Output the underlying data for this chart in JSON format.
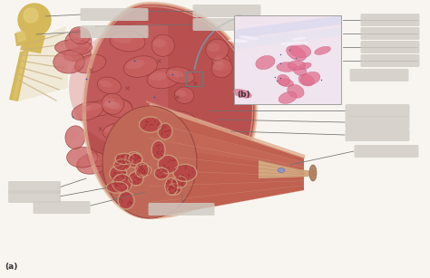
{
  "background_color": "#f8f5f0",
  "label_a": "(a)",
  "label_b": "(b)",
  "muscle_base": "#b85050",
  "muscle_mid": "#c86060",
  "muscle_light": "#d47070",
  "muscle_fascicle_edge": "#8b3030",
  "muscle_sheen": "#d48080",
  "tendon_color": "#d4b890",
  "bone_main": "#d4b85a",
  "bone_highlight": "#e8d080",
  "bone_shadow": "#b89040",
  "epimysium_color": "#e0b090",
  "perimysium_color": "#d4956a",
  "fascicle_fill": "#b84848",
  "fiber_small": "#c05050",
  "fiber_dot": "#a83838",
  "micro_bg": "#f5eef5",
  "micro_pink1": "#e080a0",
  "micro_pink2": "#d06888",
  "micro_white": "#f0ece8",
  "micro_blue": "#6070c0",
  "label_color": "#d0ccc4",
  "line_color": "#707070",
  "arrow_color": "#8090a0",
  "sel_box_color": "#707878"
}
